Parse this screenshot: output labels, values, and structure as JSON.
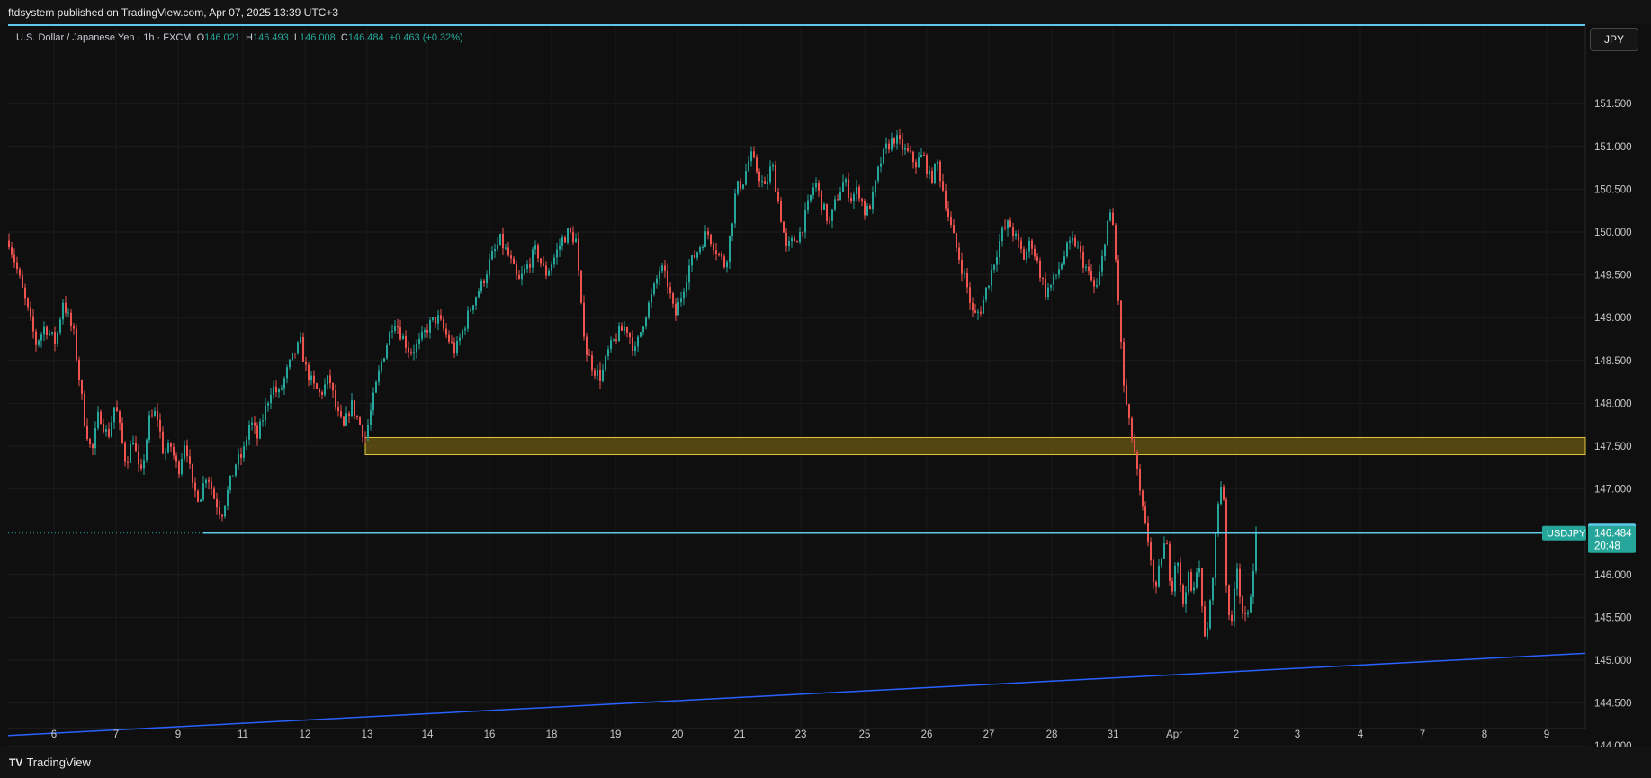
{
  "header": {
    "publish_line": "ftdsystem published on TradingView.com, Apr 07, 2025 13:39 UTC+3"
  },
  "symbol": {
    "name": "U.S. Dollar / Japanese Yen · 1h · FXCM",
    "open_label": "O",
    "open": "146.021",
    "high_label": "H",
    "high": "146.493",
    "low_label": "L",
    "low": "146.008",
    "close_label": "C",
    "close": "146.484",
    "change": "+0.463 (+0.32%)"
  },
  "currency_button": "JPY",
  "price_tags": {
    "level": "146.500",
    "ticker": "USDJPY",
    "last": "146.484",
    "countdown": "20:48"
  },
  "footer": {
    "brand": "TradingView"
  },
  "colors": {
    "background": "#0f0f0f",
    "up": "#26a69a",
    "down": "#ef5350",
    "zone_border": "#e5c53b",
    "zone_fill": "#6b5a12",
    "level_line": "#5ec8e8",
    "trend_line": "#2962ff"
  },
  "chart_data": {
    "type": "candlestick",
    "title": "U.S. Dollar / Japanese Yen · 1h · FXCM",
    "ylim": [
      143.8,
      151.9
    ],
    "y_ticks": [
      "151.500",
      "151.000",
      "150.500",
      "150.000",
      "149.500",
      "149.000",
      "148.500",
      "148.000",
      "147.500",
      "147.000",
      "146.500",
      "146.000",
      "145.500",
      "145.000",
      "144.500",
      "144.000"
    ],
    "x_ticks": [
      "6",
      "7",
      "9",
      "11",
      "12",
      "13",
      "14",
      "16",
      "18",
      "19",
      "20",
      "21",
      "23",
      "25",
      "26",
      "27",
      "28",
      "31",
      "Apr",
      "2",
      "3",
      "4",
      "7",
      "8",
      "9"
    ],
    "close_path": [
      [
        0,
        149.9
      ],
      [
        8,
        149.6
      ],
      [
        18,
        149.2
      ],
      [
        30,
        148.7
      ],
      [
        40,
        148.9
      ],
      [
        52,
        148.7
      ],
      [
        60,
        149.2
      ],
      [
        72,
        148.8
      ],
      [
        84,
        147.8
      ],
      [
        92,
        147.4
      ],
      [
        100,
        147.9
      ],
      [
        110,
        147.6
      ],
      [
        118,
        148.0
      ],
      [
        130,
        147.3
      ],
      [
        138,
        147.6
      ],
      [
        146,
        147.1
      ],
      [
        156,
        147.8
      ],
      [
        164,
        147.9
      ],
      [
        172,
        147.4
      ],
      [
        180,
        147.5
      ],
      [
        188,
        147.2
      ],
      [
        196,
        147.6
      ],
      [
        204,
        147.0
      ],
      [
        212,
        146.9
      ],
      [
        220,
        147.2
      ],
      [
        228,
        146.9
      ],
      [
        236,
        146.7
      ],
      [
        244,
        147.0
      ],
      [
        252,
        147.3
      ],
      [
        260,
        147.4
      ],
      [
        268,
        147.8
      ],
      [
        276,
        147.6
      ],
      [
        284,
        147.9
      ],
      [
        292,
        148.2
      ],
      [
        300,
        148.1
      ],
      [
        310,
        148.4
      ],
      [
        318,
        148.6
      ],
      [
        324,
        148.7
      ],
      [
        330,
        148.4
      ],
      [
        338,
        148.2
      ],
      [
        346,
        148.1
      ],
      [
        356,
        148.3
      ],
      [
        364,
        147.9
      ],
      [
        372,
        147.7
      ],
      [
        380,
        148.0
      ],
      [
        388,
        147.8
      ],
      [
        396,
        147.6
      ],
      [
        404,
        148.0
      ],
      [
        412,
        148.4
      ],
      [
        420,
        148.7
      ],
      [
        428,
        149.0
      ],
      [
        436,
        148.8
      ],
      [
        446,
        148.6
      ],
      [
        456,
        148.7
      ],
      [
        466,
        148.9
      ],
      [
        476,
        149.0
      ],
      [
        486,
        148.8
      ],
      [
        496,
        148.6
      ],
      [
        506,
        148.9
      ],
      [
        516,
        149.2
      ],
      [
        526,
        149.4
      ],
      [
        536,
        149.7
      ],
      [
        546,
        149.9
      ],
      [
        556,
        149.7
      ],
      [
        566,
        149.4
      ],
      [
        576,
        149.6
      ],
      [
        586,
        149.8
      ],
      [
        596,
        149.5
      ],
      [
        606,
        149.7
      ],
      [
        614,
        149.9
      ],
      [
        622,
        150.0
      ],
      [
        630,
        149.9
      ],
      [
        636,
        149.1
      ],
      [
        642,
        148.6
      ],
      [
        650,
        148.4
      ],
      [
        658,
        148.3
      ],
      [
        666,
        148.6
      ],
      [
        676,
        148.8
      ],
      [
        686,
        148.9
      ],
      [
        696,
        148.6
      ],
      [
        706,
        149.0
      ],
      [
        716,
        149.3
      ],
      [
        724,
        149.6
      ],
      [
        732,
        149.4
      ],
      [
        740,
        149.0
      ],
      [
        748,
        149.3
      ],
      [
        756,
        149.6
      ],
      [
        766,
        149.8
      ],
      [
        776,
        150.0
      ],
      [
        786,
        149.8
      ],
      [
        796,
        149.6
      ],
      [
        802,
        150.0
      ],
      [
        808,
        150.5
      ],
      [
        816,
        150.6
      ],
      [
        824,
        150.9
      ],
      [
        832,
        150.7
      ],
      [
        840,
        150.5
      ],
      [
        848,
        150.8
      ],
      [
        856,
        150.3
      ],
      [
        864,
        149.8
      ],
      [
        872,
        149.9
      ],
      [
        880,
        150.0
      ],
      [
        888,
        150.3
      ],
      [
        896,
        150.6
      ],
      [
        904,
        150.3
      ],
      [
        912,
        150.1
      ],
      [
        920,
        150.4
      ],
      [
        928,
        150.6
      ],
      [
        936,
        150.4
      ],
      [
        944,
        150.5
      ],
      [
        952,
        150.2
      ],
      [
        960,
        150.4
      ],
      [
        968,
        150.8
      ],
      [
        976,
        151.0
      ],
      [
        984,
        151.1
      ],
      [
        992,
        151.0
      ],
      [
        1000,
        150.9
      ],
      [
        1008,
        150.8
      ],
      [
        1016,
        150.9
      ],
      [
        1024,
        150.6
      ],
      [
        1032,
        150.8
      ],
      [
        1040,
        150.4
      ],
      [
        1048,
        150.0
      ],
      [
        1056,
        149.7
      ],
      [
        1064,
        149.4
      ],
      [
        1072,
        149.0
      ],
      [
        1080,
        149.1
      ],
      [
        1088,
        149.4
      ],
      [
        1096,
        149.7
      ],
      [
        1104,
        150.0
      ],
      [
        1112,
        150.1
      ],
      [
        1120,
        149.9
      ],
      [
        1128,
        149.7
      ],
      [
        1136,
        149.9
      ],
      [
        1144,
        149.6
      ],
      [
        1152,
        149.3
      ],
      [
        1160,
        149.4
      ],
      [
        1168,
        149.6
      ],
      [
        1176,
        149.8
      ],
      [
        1184,
        149.9
      ],
      [
        1192,
        149.7
      ],
      [
        1200,
        149.5
      ],
      [
        1208,
        149.3
      ],
      [
        1214,
        149.6
      ],
      [
        1220,
        150.1
      ],
      [
        1226,
        150.2
      ],
      [
        1232,
        149.4
      ],
      [
        1238,
        148.3
      ],
      [
        1244,
        147.8
      ],
      [
        1250,
        147.5
      ],
      [
        1256,
        147.0
      ],
      [
        1262,
        146.6
      ],
      [
        1268,
        146.3
      ],
      [
        1274,
        145.7
      ],
      [
        1280,
        146.2
      ],
      [
        1286,
        146.4
      ],
      [
        1292,
        145.8
      ],
      [
        1298,
        146.3
      ],
      [
        1304,
        145.6
      ],
      [
        1310,
        146.0
      ],
      [
        1316,
        145.7
      ],
      [
        1322,
        146.3
      ],
      [
        1328,
        145.2
      ],
      [
        1334,
        145.5
      ],
      [
        1340,
        146.3
      ],
      [
        1346,
        147.1
      ],
      [
        1350,
        146.9
      ],
      [
        1354,
        145.6
      ],
      [
        1358,
        145.3
      ],
      [
        1364,
        146.2
      ],
      [
        1370,
        145.6
      ],
      [
        1376,
        145.4
      ],
      [
        1382,
        146.0
      ],
      [
        1386,
        146.48
      ]
    ],
    "zone": {
      "x_start": 13,
      "y_top": 147.6,
      "y_bottom": 147.4
    },
    "level_line": 146.484,
    "trend_line": [
      [
        0,
        144.12
      ],
      [
        1500,
        145.08
      ]
    ]
  }
}
